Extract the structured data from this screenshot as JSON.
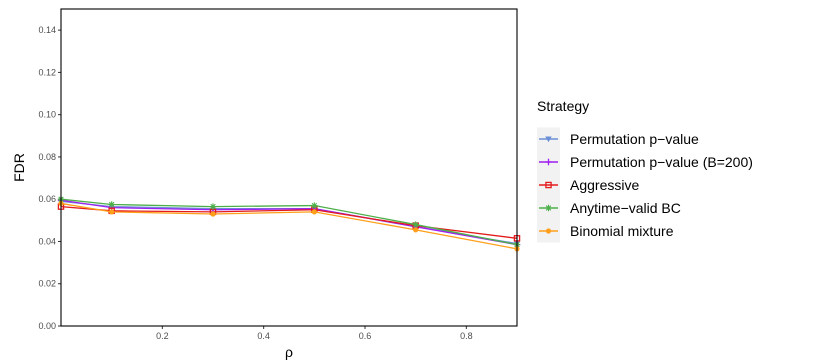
{
  "chart_data": {
    "type": "line",
    "xlabel": "ρ",
    "ylabel": "FDR",
    "xlim": [
      0.0,
      0.9
    ],
    "ylim": [
      0.0,
      0.15
    ],
    "x_ticks": [
      "0.2",
      "0.4",
      "0.6",
      "0.8"
    ],
    "y_ticks": [
      "0.00",
      "0.02",
      "0.04",
      "0.06",
      "0.08",
      "0.10",
      "0.12",
      "0.14"
    ],
    "grid": false,
    "legend_position": "right",
    "legend_title": "Strategy",
    "x": [
      0.0,
      0.1,
      0.3,
      0.5,
      0.7,
      0.9
    ],
    "series": [
      {
        "name": "Permutation p−value",
        "color": "#6a8fd6",
        "marker": "triangle-down",
        "values": [
          0.059,
          0.0565,
          0.0555,
          0.0555,
          0.047,
          0.039
        ]
      },
      {
        "name": "Permutation p−value (B=200)",
        "color": "#a020f0",
        "marker": "plus",
        "values": [
          0.0595,
          0.056,
          0.055,
          0.0555,
          0.047,
          0.0385
        ]
      },
      {
        "name": "Aggressive",
        "color": "#e41a1c",
        "marker": "square",
        "values": [
          0.0565,
          0.0545,
          0.054,
          0.055,
          0.0475,
          0.0415
        ]
      },
      {
        "name": "Anytime−valid BC",
        "color": "#4daf4a",
        "marker": "asterisk",
        "values": [
          0.06,
          0.0575,
          0.0565,
          0.057,
          0.048,
          0.0385
        ]
      },
      {
        "name": "Binomial mixture",
        "color": "#ff9f1a",
        "marker": "circle",
        "values": [
          0.058,
          0.054,
          0.053,
          0.054,
          0.0455,
          0.0365
        ]
      }
    ]
  }
}
